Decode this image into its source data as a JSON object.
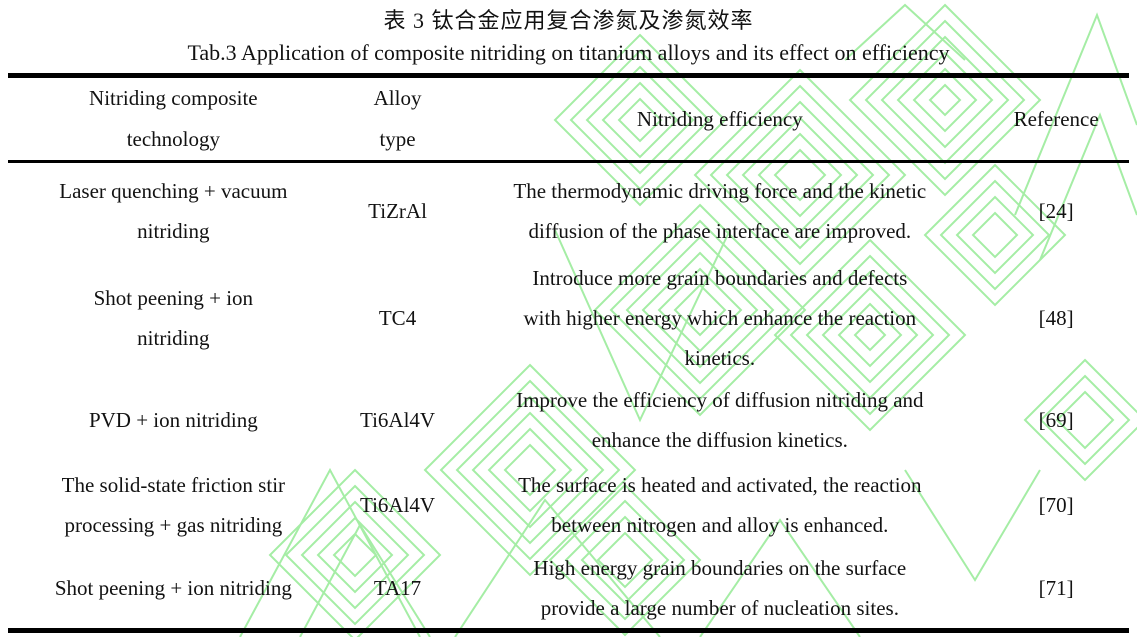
{
  "page": {
    "title_zh": "表 3  钛合金应用复合渗氮及渗氮效率",
    "title_en": "Tab.3 Application of composite nitriding on titanium alloys and its effect on efficiency"
  },
  "table": {
    "columns": [
      {
        "label": "Nitriding composite\ntechnology"
      },
      {
        "label": "Alloy\ntype"
      },
      {
        "label": "Nitriding efficiency"
      },
      {
        "label": "Reference"
      }
    ],
    "rows": [
      {
        "technology": "Laser quenching + vacuum\nnitriding",
        "alloy": "TiZrAl",
        "efficiency": "The thermodynamic driving force and the kinetic\ndiffusion of the phase interface are improved.",
        "reference": "[24]"
      },
      {
        "technology": "Shot peening + ion\nnitriding",
        "alloy": "TC4",
        "efficiency": "Introduce more grain boundaries and defects\nwith higher energy which enhance the reaction\nkinetics.",
        "reference": "[48]"
      },
      {
        "technology": "PVD + ion nitriding",
        "alloy": "Ti6Al4V",
        "efficiency": "Improve the efficiency of diffusion nitriding and\nenhance the diffusion kinetics.",
        "reference": "[69]"
      },
      {
        "technology": "The solid-state friction stir\nprocessing + gas nitriding",
        "alloy": "Ti6Al4V",
        "efficiency": "The surface is heated and activated, the reaction\nbetween nitrogen and alloy is enhanced.",
        "reference": "[70]"
      },
      {
        "technology": "Shot peening + ion nitriding",
        "alloy": "TA17",
        "efficiency": "High energy grain boundaries on the surface\nprovide a large number of nucleation sites.",
        "reference": "[71]"
      }
    ]
  },
  "watermark": {
    "color": "#a5eda5"
  }
}
